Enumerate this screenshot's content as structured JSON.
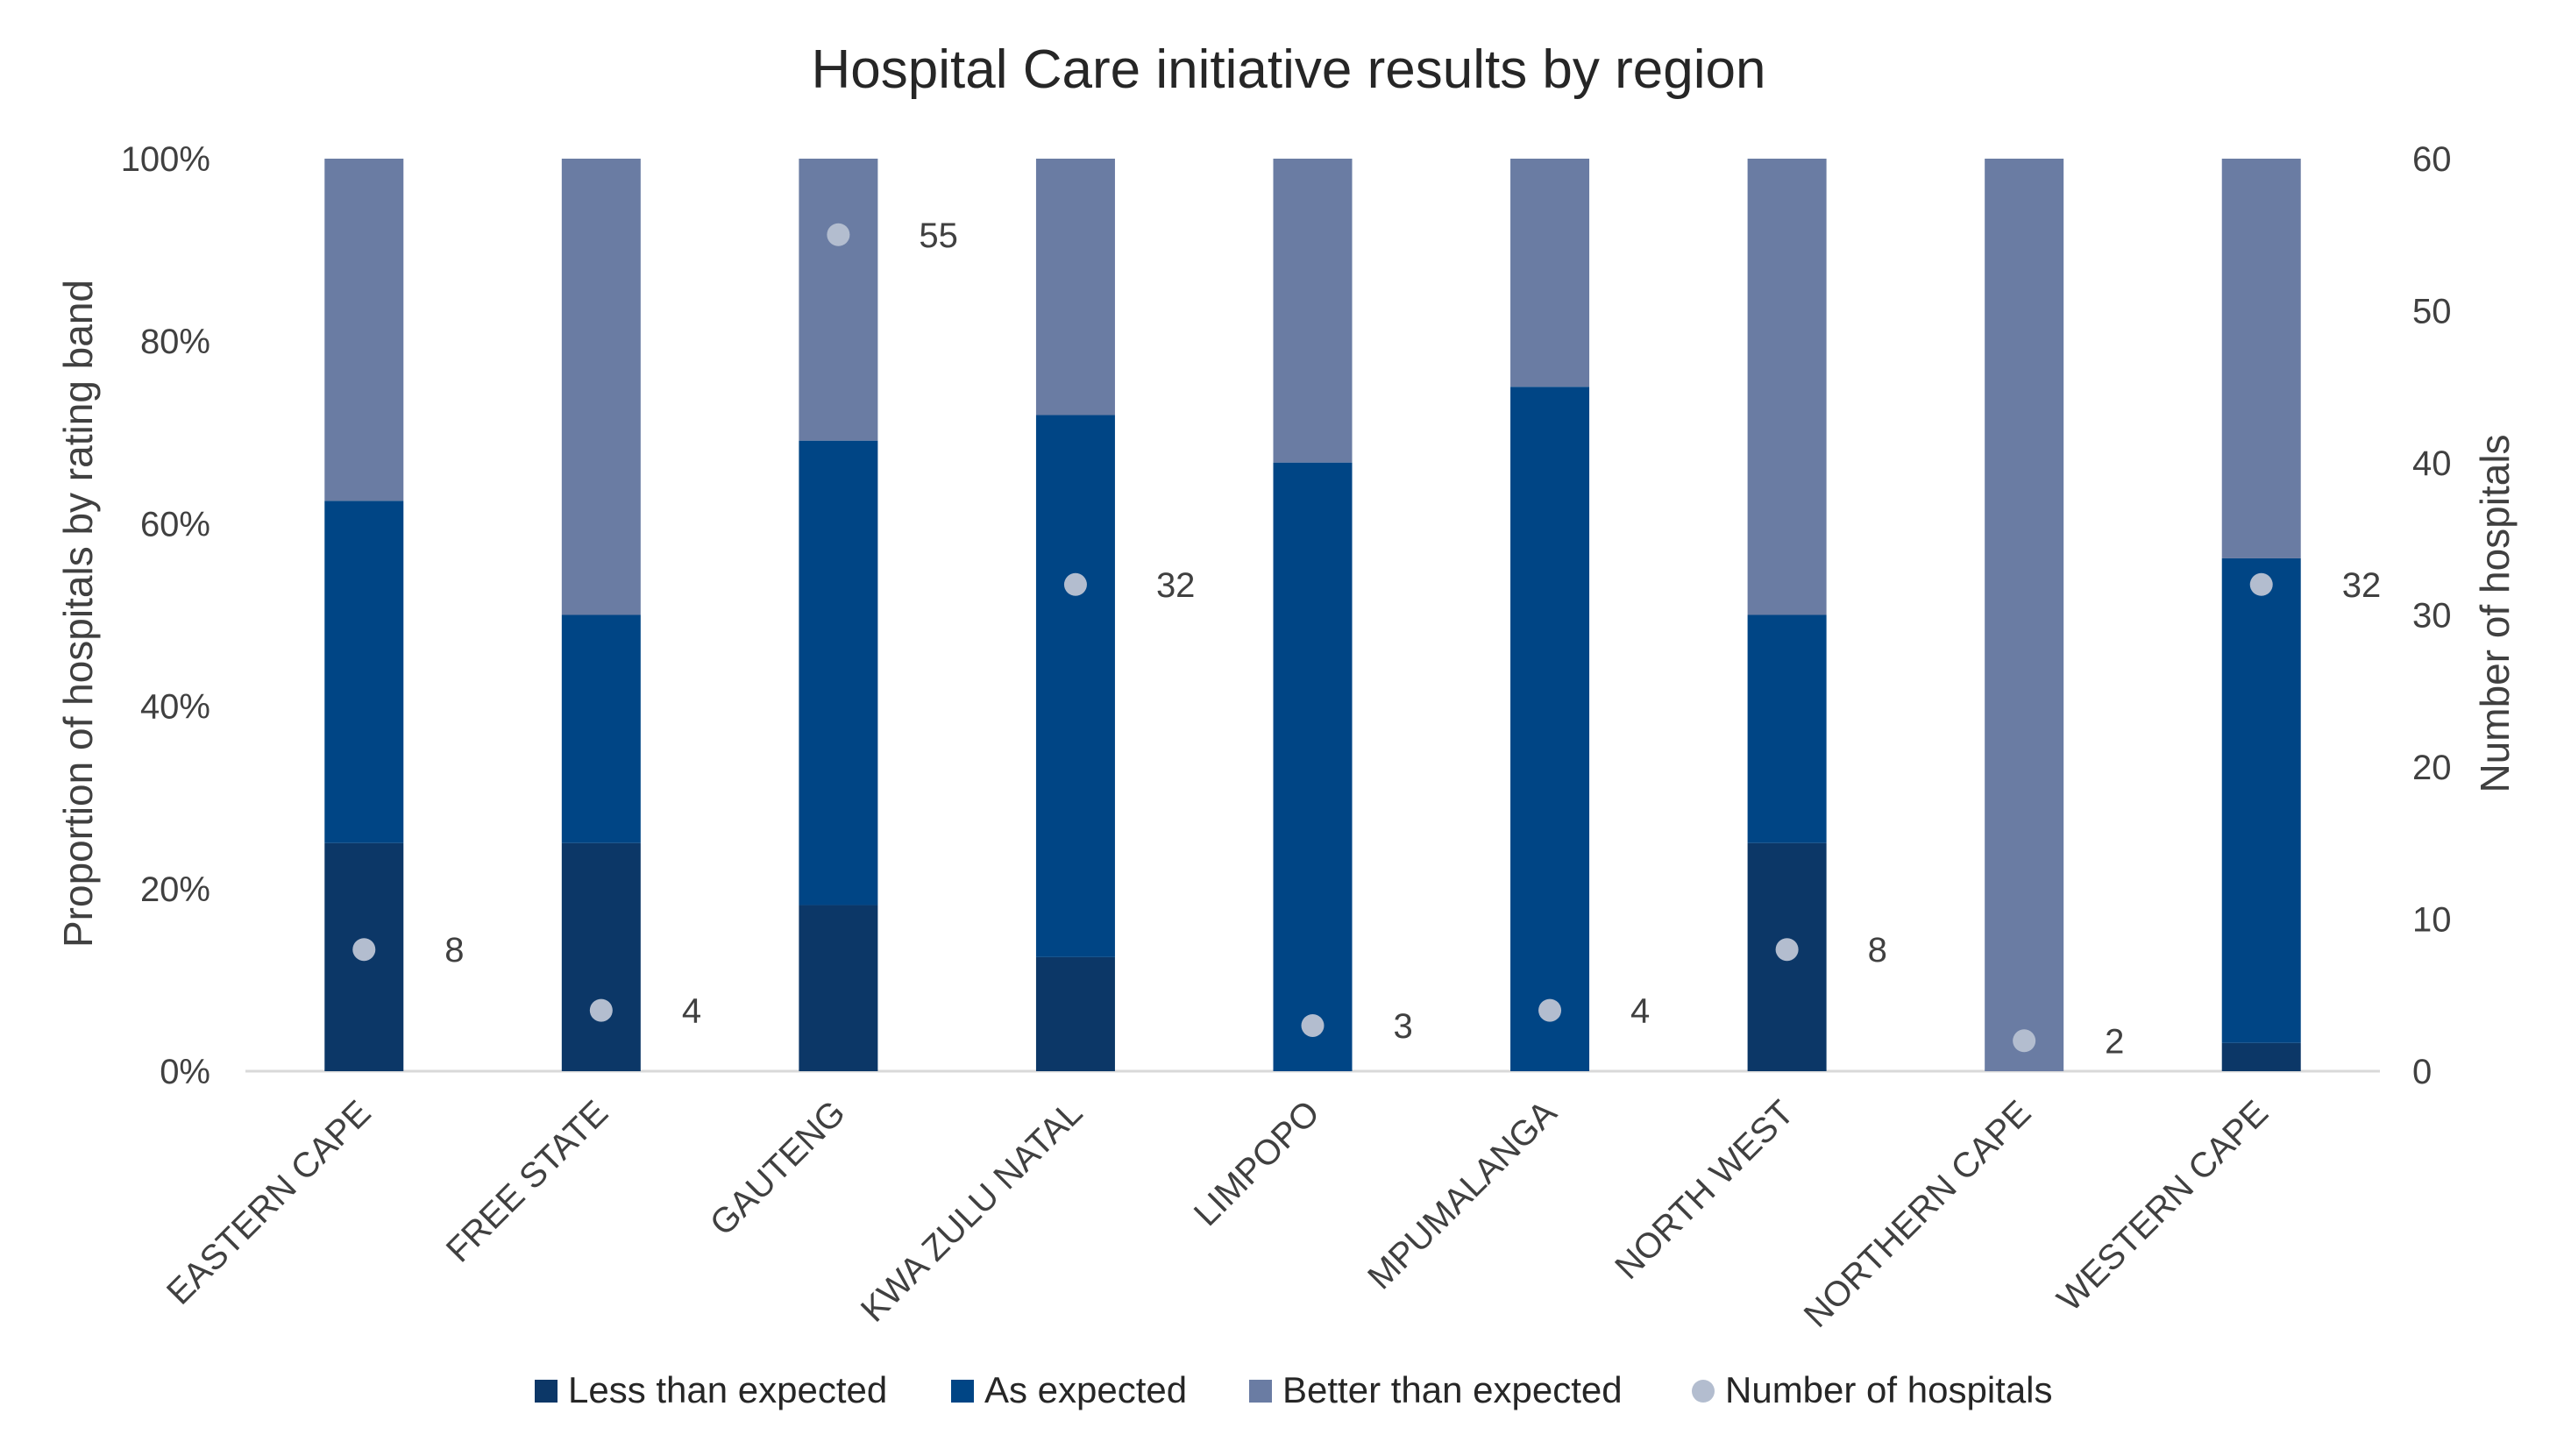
{
  "chart_data": {
    "type": "bar",
    "stacked": true,
    "percent_stacked": true,
    "title": "Hospital Care initiative results by region",
    "xlabel": "",
    "ylabel": "Proportion of hospitals by rating band",
    "y2label": "Number of hospitals",
    "ylim": [
      0,
      100
    ],
    "y2lim": [
      0,
      60
    ],
    "yticks": [
      "0%",
      "20%",
      "40%",
      "60%",
      "80%",
      "100%"
    ],
    "y2ticks": [
      "0",
      "10",
      "20",
      "30",
      "40",
      "50",
      "60"
    ],
    "categories": [
      "EASTERN CAPE",
      "FREE STATE",
      "GAUTENG",
      "KWA ZULU NATAL",
      "LIMPOPO",
      "MPUMALANGA",
      "NORTH WEST",
      "NORTHERN CAPE",
      "WESTERN CAPE"
    ],
    "series": [
      {
        "name": "Less than expected",
        "color": "#0c3767",
        "values": [
          25,
          25,
          18.2,
          12.5,
          0,
          0,
          25,
          0,
          3.1
        ]
      },
      {
        "name": "As expected",
        "color": "#004585",
        "values": [
          37.5,
          25,
          50.9,
          59.4,
          66.7,
          75,
          25,
          0,
          53.1
        ]
      },
      {
        "name": "Better than expected",
        "color": "#6a7ca3",
        "values": [
          37.5,
          50,
          30.9,
          28.1,
          33.3,
          25,
          50,
          100,
          43.8
        ]
      }
    ],
    "markers": {
      "name": "Number of hospitals",
      "color": "#b3bdcf",
      "axis": "secondary",
      "values": [
        8,
        4,
        55,
        32,
        3,
        4,
        8,
        2,
        32
      ],
      "labels": [
        "8",
        "4",
        "55",
        "32",
        "3",
        "4",
        "8",
        "2",
        "32"
      ]
    },
    "legend_position": "bottom",
    "grid": false
  }
}
